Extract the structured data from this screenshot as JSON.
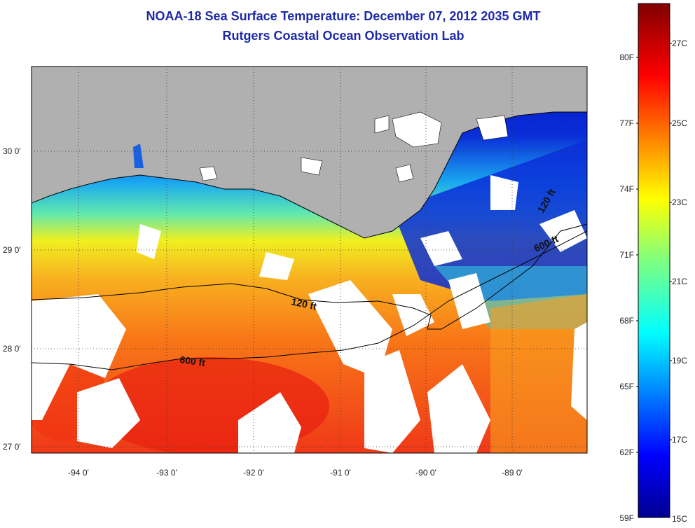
{
  "header": {
    "title": "NOAA-18 Sea Surface Temperature:  December 07, 2012 2035 GMT",
    "subtitle": "Rutgers Coastal Ocean Observation Lab"
  },
  "map": {
    "lat_labels": [
      "30 0'",
      "29 0'",
      "28 0'",
      "27 0'"
    ],
    "lon_labels": [
      "-94 0'",
      "-93 0'",
      "-92 0'",
      "-91 0'",
      "-90 0'",
      "-89 0'"
    ],
    "depth_labels": [
      "120 ft",
      "600 ft",
      "120 ft",
      "600 ft"
    ],
    "colors": {
      "land": "#b0b0b0",
      "cloud": "#ffffff",
      "coast": "#000000"
    }
  },
  "colorbar": {
    "fahrenheit": [
      "80F",
      "77F",
      "74F",
      "71F",
      "68F",
      "65F",
      "62F",
      "59F"
    ],
    "celsius": [
      "27C",
      "25C",
      "23C",
      "21C",
      "19C",
      "17C",
      "15C"
    ],
    "min_c": 15,
    "max_c": 28,
    "colormap": "jet"
  }
}
